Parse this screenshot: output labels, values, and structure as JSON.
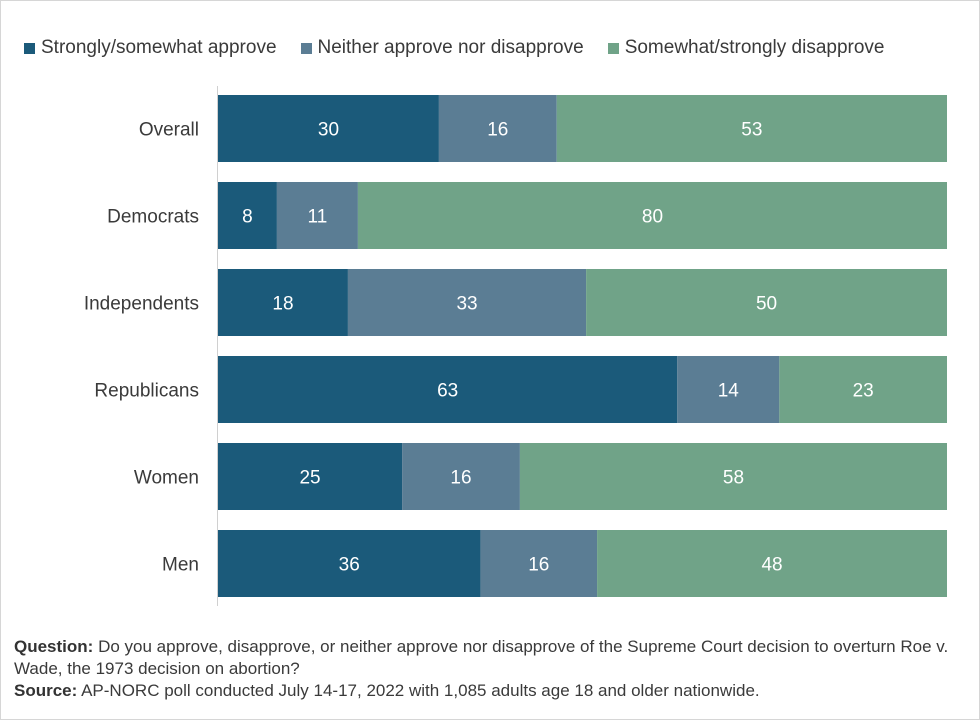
{
  "legend": [
    {
      "label": "Strongly/somewhat approve",
      "color": "#1b5a7a"
    },
    {
      "label": "Neither approve nor disapprove",
      "color": "#5b7d94"
    },
    {
      "label": "Somewhat/strongly disapprove",
      "color": "#70a388"
    }
  ],
  "chart_data": {
    "type": "bar",
    "orientation": "horizontal",
    "stacked": true,
    "categories": [
      "Overall",
      "Democrats",
      "Independents",
      "Republicans",
      "Women",
      "Men"
    ],
    "series": [
      {
        "name": "Strongly/somewhat approve",
        "color": "#1b5a7a",
        "values": [
          30,
          8,
          18,
          63,
          25,
          36
        ]
      },
      {
        "name": "Neither approve nor disapprove",
        "color": "#5b7d94",
        "values": [
          16,
          11,
          33,
          14,
          16,
          16
        ]
      },
      {
        "name": "Somewhat/strongly disapprove",
        "color": "#70a388",
        "values": [
          53,
          80,
          50,
          23,
          58,
          48
        ]
      }
    ],
    "legend_position": "top",
    "grid": false,
    "data_labels": true
  },
  "notes": {
    "question_label": "Question:",
    "question_text": " Do you approve, disapprove, or neither approve nor disapprove of the Supreme Court decision to overturn Roe v. Wade, the 1973 decision on abortion?",
    "source_label": "Source:",
    "source_text": " AP-NORC poll conducted July 14-17, 2022 with 1,085 adults age 18 and older nationwide."
  }
}
